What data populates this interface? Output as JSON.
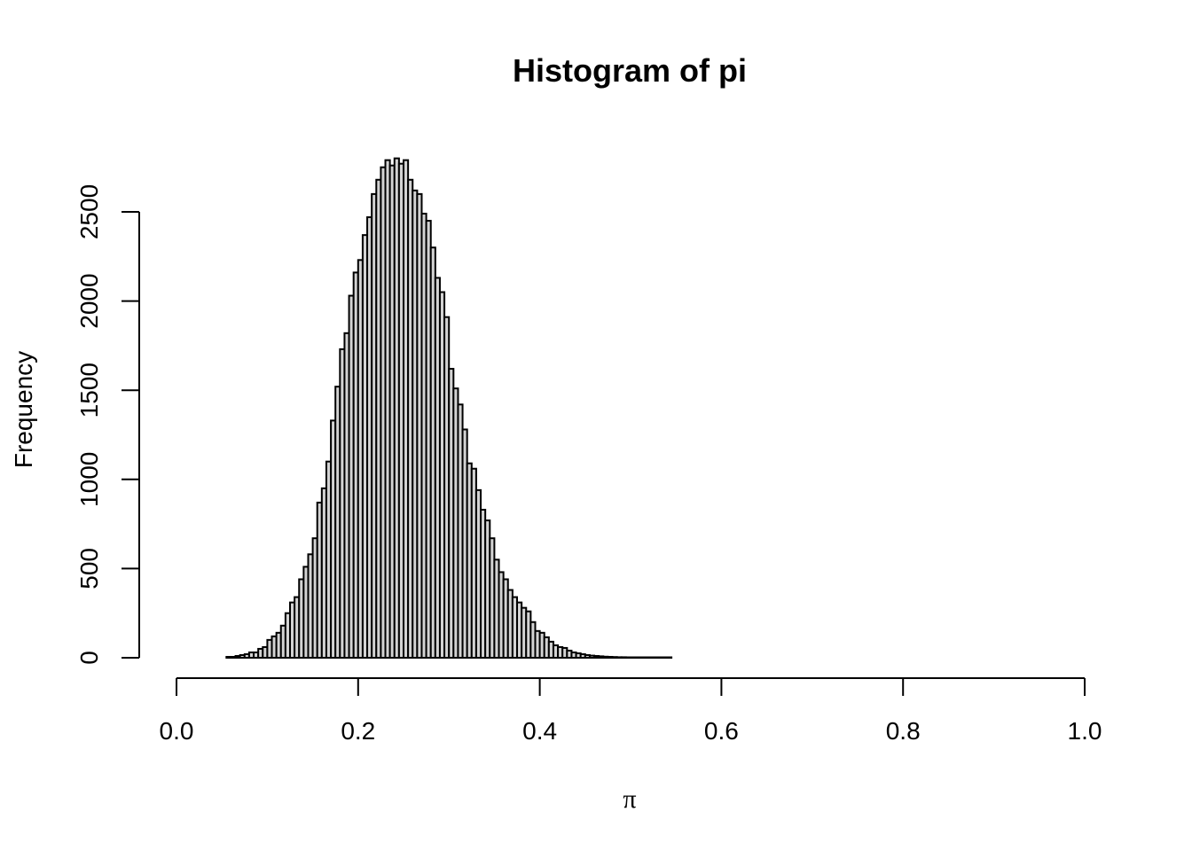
{
  "chart_data": {
    "type": "bar",
    "title": "Histogram of pi",
    "xlabel": "π",
    "ylabel": "Frequency",
    "xlim": [
      0.0,
      1.0
    ],
    "ylim": [
      0,
      2800
    ],
    "x_ticks": [
      "0.0",
      "0.2",
      "0.4",
      "0.6",
      "0.8",
      "1.0"
    ],
    "y_ticks": [
      "0",
      "500",
      "1000",
      "1500",
      "2000",
      "2500"
    ],
    "bin_width": 0.005,
    "bin_start": 0.055,
    "values": [
      5,
      5,
      10,
      15,
      20,
      30,
      30,
      50,
      60,
      100,
      120,
      140,
      180,
      250,
      310,
      340,
      440,
      510,
      580,
      670,
      870,
      950,
      1100,
      1330,
      1520,
      1730,
      1820,
      2030,
      2160,
      2230,
      2370,
      2470,
      2600,
      2680,
      2750,
      2790,
      2760,
      2800,
      2770,
      2790,
      2680,
      2620,
      2600,
      2490,
      2450,
      2300,
      2130,
      2050,
      1910,
      1620,
      1510,
      1420,
      1280,
      1090,
      1060,
      940,
      830,
      770,
      670,
      550,
      480,
      440,
      380,
      340,
      310,
      280,
      260,
      200,
      150,
      140,
      115,
      90,
      70,
      60,
      55,
      40,
      30,
      25,
      20,
      15,
      12,
      10,
      8,
      6,
      5,
      4,
      3,
      3,
      2,
      2,
      2,
      2,
      1,
      1,
      1,
      1,
      1,
      1
    ],
    "colors": {
      "bar_fill": "#d3d3d3",
      "bar_stroke": "#000000",
      "axis": "#000000"
    },
    "grid": false,
    "legend": "none"
  }
}
